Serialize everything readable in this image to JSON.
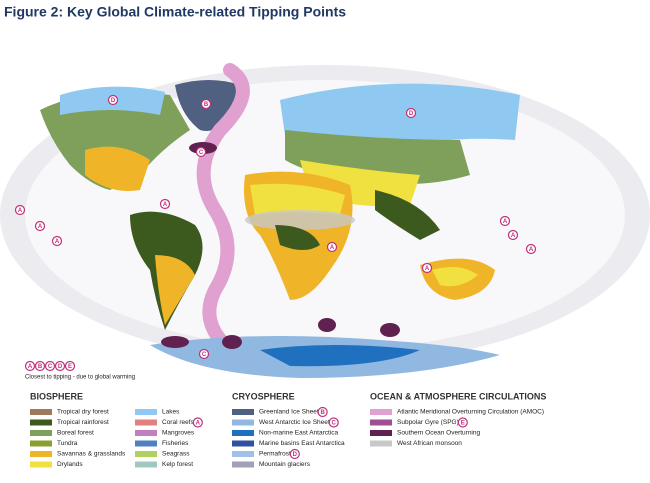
{
  "title": "Figure 2: Key Global Climate-related Tipping Points",
  "map": {
    "markers": [
      "D",
      "B",
      "C",
      "D",
      "A",
      "A",
      "A",
      "A",
      "A",
      "A",
      "A",
      "A",
      "A",
      "C"
    ]
  },
  "key": {
    "markers": [
      "A",
      "B",
      "C",
      "D",
      "E"
    ],
    "label": "Closest to tipping - due to global warming"
  },
  "legend": [
    {
      "heading": "BIOSPHERE",
      "items": [
        {
          "label": "Tropical dry forest",
          "color": "#a0785a"
        },
        {
          "label": "Tropical rainforest",
          "color": "#3d5a1e"
        },
        {
          "label": "Boreal forest",
          "color": "#7fa05a"
        },
        {
          "label": "Tundra",
          "color": "#8aa02e"
        },
        {
          "label": "Savannas & grasslands",
          "color": "#f0b428"
        },
        {
          "label": "Drylands",
          "color": "#f0e040"
        },
        {
          "label": "Lakes",
          "color": "#8fc8f0"
        },
        {
          "label": "Coral reefs",
          "color": "#e08080",
          "marker": "A"
        },
        {
          "label": "Mangroves",
          "color": "#c080c0"
        },
        {
          "label": "Fisheries",
          "color": "#5080c0"
        },
        {
          "label": "Seagrass",
          "color": "#b0d060"
        },
        {
          "label": "Kelp forest",
          "color": "#a0c8c0"
        }
      ]
    },
    {
      "heading": "CRYOSPHERE",
      "items": [
        {
          "label": "Greenland Ice Sheet",
          "color": "#506080",
          "marker": "B"
        },
        {
          "label": "West Antarctic Ice Sheet",
          "color": "#90b8e0",
          "marker": "C"
        },
        {
          "label": "Non-marine East Antarctica",
          "color": "#2070c0"
        },
        {
          "label": "Marine basins East Antarctica",
          "color": "#3050a0"
        },
        {
          "label": "Permafrost",
          "color": "#a0c0e8",
          "marker": "D"
        },
        {
          "label": "Mountain glaciers",
          "color": "#a0a0b8"
        }
      ]
    },
    {
      "heading": "OCEAN & ATMOSPHERE CIRCULATIONS",
      "items": [
        {
          "label": "Atlantic Meridional Overturning Circulation (AMOC)",
          "color": "#e0a0d0"
        },
        {
          "label": "Subpolar Gyre (SPG)",
          "color": "#a05090",
          "marker": "E"
        },
        {
          "label": "Southern Ocean Overturning",
          "color": "#602050"
        },
        {
          "label": "West African monsoon",
          "color": "#c8c8c8"
        }
      ]
    }
  ]
}
